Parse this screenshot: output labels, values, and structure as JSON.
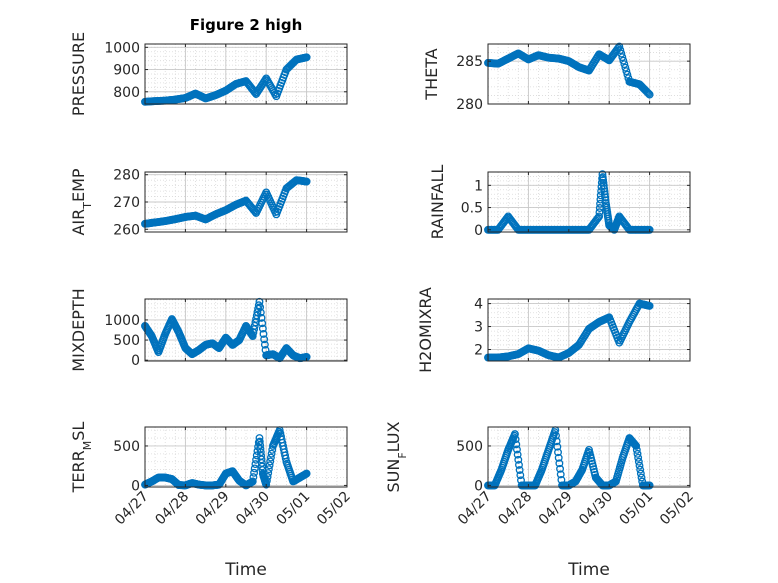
{
  "figure": {
    "background": "#ffffff",
    "marker_color": "#0072bd"
  },
  "chart_data": [
    {
      "type": "scatter",
      "title": "Figure 2 high",
      "xlabel": "",
      "ylabel": "PRESSURE",
      "xlim": [
        "04/27",
        "05/02"
      ],
      "ylim": [
        745,
        1015
      ],
      "yticks": [
        800,
        900,
        1000
      ],
      "grid": true,
      "minor_grid": true,
      "marker": "open-circle",
      "x": [
        "04/27 00:00",
        "04/27 06:00",
        "04/27 12:00",
        "04/27 18:00",
        "04/28 00:00",
        "04/28 06:00",
        "04/28 12:00",
        "04/28 18:00",
        "04/29 00:00",
        "04/29 06:00",
        "04/29 12:00",
        "04/29 18:00",
        "04/30 00:00",
        "04/30 06:00",
        "04/30 12:00",
        "04/30 18:00",
        "05/01 00:00"
      ],
      "series": [
        {
          "values": [
            755,
            758,
            760,
            765,
            772,
            792,
            770,
            785,
            805,
            835,
            848,
            790,
            860,
            780,
            900,
            945,
            955
          ]
        }
      ]
    },
    {
      "type": "scatter",
      "title": "",
      "xlabel": "",
      "ylabel": "THETA",
      "xlim": [
        "04/27",
        "05/02"
      ],
      "ylim": [
        280,
        287
      ],
      "yticks": [
        280,
        285
      ],
      "grid": true,
      "minor_grid": true,
      "marker": "open-circle",
      "x": [
        "04/27 00:00",
        "04/27 06:00",
        "04/27 12:00",
        "04/27 18:00",
        "04/28 00:00",
        "04/28 06:00",
        "04/28 12:00",
        "04/28 18:00",
        "04/29 00:00",
        "04/29 06:00",
        "04/29 12:00",
        "04/29 18:00",
        "04/30 00:00",
        "04/30 06:00",
        "04/30 12:00",
        "04/30 18:00",
        "05/01 00:00"
      ],
      "series": [
        {
          "values": [
            284.8,
            284.7,
            285.3,
            285.9,
            285.2,
            285.7,
            285.4,
            285.3,
            285.0,
            284.3,
            283.9,
            285.8,
            285.1,
            286.7,
            282.6,
            282.3,
            281.1
          ]
        }
      ]
    },
    {
      "type": "scatter",
      "title": "",
      "xlabel": "",
      "ylabel": "AIR_TEMP",
      "xlim": [
        "04/27",
        "05/02"
      ],
      "ylim": [
        259,
        281
      ],
      "yticks": [
        260,
        270,
        280
      ],
      "grid": true,
      "minor_grid": true,
      "marker": "open-circle",
      "x": [
        "04/27 00:00",
        "04/27 06:00",
        "04/27 12:00",
        "04/27 18:00",
        "04/28 00:00",
        "04/28 06:00",
        "04/28 12:00",
        "04/28 18:00",
        "04/29 00:00",
        "04/29 06:00",
        "04/29 12:00",
        "04/29 18:00",
        "04/30 00:00",
        "04/30 06:00",
        "04/30 12:00",
        "04/30 18:00",
        "05/01 00:00"
      ],
      "series": [
        {
          "values": [
            262,
            262.5,
            263,
            263.7,
            264.5,
            265,
            263.6,
            265.5,
            267,
            269,
            270.5,
            266,
            273.5,
            265.5,
            275,
            278,
            277.5
          ]
        }
      ]
    },
    {
      "type": "scatter",
      "title": "",
      "xlabel": "",
      "ylabel": "RAINFALL",
      "xlim": [
        "04/27",
        "05/02"
      ],
      "ylim": [
        -0.05,
        1.3
      ],
      "yticks": [
        0,
        0.5,
        1
      ],
      "grid": true,
      "minor_grid": true,
      "marker": "open-circle",
      "x": [
        "04/27 00:00",
        "04/27 06:00",
        "04/27 12:00",
        "04/27 18:00",
        "04/28 00:00",
        "04/28 06:00",
        "04/28 12:00",
        "04/28 18:00",
        "04/29 00:00",
        "04/29 06:00",
        "04/29 12:00",
        "04/29 18:00",
        "04/29 20:00",
        "04/29 22:00",
        "04/30 00:00",
        "04/30 03:00",
        "04/30 06:00",
        "04/30 12:00",
        "04/30 18:00",
        "05/01 00:00"
      ],
      "series": [
        {
          "values": [
            0,
            0,
            0.3,
            0,
            0,
            0,
            0,
            0,
            0,
            0,
            0,
            0.3,
            1.25,
            0.6,
            0.1,
            0,
            0.3,
            0,
            0,
            0
          ]
        }
      ]
    },
    {
      "type": "scatter",
      "title": "",
      "xlabel": "",
      "ylabel": "MIXDEPTH",
      "xlim": [
        "04/27",
        "05/02"
      ],
      "ylim": [
        -20,
        1520
      ],
      "yticks": [
        0,
        500,
        1000
      ],
      "grid": true,
      "minor_grid": true,
      "marker": "open-circle",
      "x": [
        "04/27 00:00",
        "04/27 04:00",
        "04/27 08:00",
        "04/27 12:00",
        "04/27 16:00",
        "04/27 20:00",
        "04/28 00:00",
        "04/28 04:00",
        "04/28 08:00",
        "04/28 12:00",
        "04/28 16:00",
        "04/28 20:00",
        "04/29 00:00",
        "04/29 04:00",
        "04/29 08:00",
        "04/29 12:00",
        "04/29 16:00",
        "04/29 20:00",
        "04/30 00:00",
        "04/30 04:00",
        "04/30 08:00",
        "04/30 12:00",
        "04/30 16:00",
        "04/30 20:00",
        "05/01 00:00"
      ],
      "series": [
        {
          "values": [
            850,
            600,
            200,
            650,
            1020,
            700,
            300,
            150,
            250,
            380,
            420,
            300,
            560,
            380,
            500,
            850,
            600,
            1450,
            120,
            150,
            50,
            300,
            120,
            50,
            80
          ]
        }
      ]
    },
    {
      "type": "scatter",
      "title": "",
      "xlabel": "",
      "ylabel": "H2OMIXRA",
      "xlim": [
        "04/27",
        "05/02"
      ],
      "ylim": [
        1.5,
        4.2
      ],
      "yticks": [
        2,
        3,
        4
      ],
      "grid": true,
      "minor_grid": true,
      "marker": "open-circle",
      "x": [
        "04/27 00:00",
        "04/27 06:00",
        "04/27 12:00",
        "04/27 18:00",
        "04/28 00:00",
        "04/28 06:00",
        "04/28 12:00",
        "04/28 18:00",
        "04/29 00:00",
        "04/29 06:00",
        "04/29 12:00",
        "04/29 18:00",
        "04/30 00:00",
        "04/30 06:00",
        "04/30 12:00",
        "04/30 18:00",
        "05/01 00:00"
      ],
      "series": [
        {
          "values": [
            1.65,
            1.65,
            1.7,
            1.8,
            2.05,
            1.95,
            1.75,
            1.65,
            1.85,
            2.2,
            2.9,
            3.2,
            3.4,
            2.3,
            3.2,
            4.0,
            3.9
          ]
        }
      ]
    },
    {
      "type": "scatter",
      "title": "",
      "xlabel": "Time",
      "ylabel": "TERR_MSL",
      "xlim": [
        "04/27",
        "05/02"
      ],
      "ylim": [
        -20,
        740
      ],
      "yticks": [
        0,
        500
      ],
      "xticks": [
        "04/27",
        "04/28",
        "04/29",
        "04/30",
        "05/01",
        "05/02"
      ],
      "grid": true,
      "minor_grid": true,
      "marker": "open-circle",
      "x": [
        "04/27 00:00",
        "04/27 04:00",
        "04/27 08:00",
        "04/27 12:00",
        "04/27 16:00",
        "04/27 20:00",
        "04/28 00:00",
        "04/28 04:00",
        "04/28 08:00",
        "04/28 12:00",
        "04/28 16:00",
        "04/28 20:00",
        "04/29 00:00",
        "04/29 04:00",
        "04/29 08:00",
        "04/29 12:00",
        "04/29 16:00",
        "04/29 20:00",
        "04/29 22:00",
        "04/30 00:00",
        "04/30 04:00",
        "04/30 08:00",
        "04/30 12:00",
        "04/30 16:00",
        "04/30 20:00",
        "05/01 00:00"
      ],
      "series": [
        {
          "values": [
            10,
            50,
            100,
            100,
            80,
            5,
            0,
            30,
            10,
            0,
            0,
            10,
            150,
            180,
            60,
            0,
            50,
            600,
            150,
            10,
            500,
            700,
            300,
            50,
            100,
            150
          ]
        }
      ]
    },
    {
      "type": "scatter",
      "title": "",
      "xlabel": "Time",
      "ylabel": "SUN_FLUX",
      "xlim": [
        "04/27",
        "05/02"
      ],
      "ylim": [
        -20,
        740
      ],
      "yticks": [
        0,
        500
      ],
      "xticks": [
        "04/27",
        "04/28",
        "04/29",
        "04/30",
        "05/01",
        "05/02"
      ],
      "grid": true,
      "minor_grid": true,
      "marker": "open-circle",
      "x": [
        "04/27 00:00",
        "04/27 04:00",
        "04/27 08:00",
        "04/27 12:00",
        "04/27 16:00",
        "04/27 20:00",
        "04/28 00:00",
        "04/28 04:00",
        "04/28 08:00",
        "04/28 12:00",
        "04/28 16:00",
        "04/28 20:00",
        "04/29 00:00",
        "04/29 04:00",
        "04/29 08:00",
        "04/29 12:00",
        "04/29 16:00",
        "04/29 20:00",
        "04/30 00:00",
        "04/30 04:00",
        "04/30 08:00",
        "04/30 12:00",
        "04/30 16:00",
        "04/30 20:00",
        "05/01 00:00"
      ],
      "series": [
        {
          "values": [
            0,
            0,
            200,
            450,
            650,
            0,
            0,
            0,
            200,
            450,
            700,
            0,
            0,
            50,
            200,
            450,
            100,
            0,
            0,
            50,
            350,
            600,
            500,
            0,
            0
          ]
        }
      ]
    }
  ],
  "labels": {
    "title": "Figure 2 high",
    "ylabels": [
      "PRESSURE",
      "THETA",
      "AIR",
      "T",
      "EMP",
      "RAINFALL",
      "MIXDEPTH",
      "H2OMIXRA",
      "TERR",
      "M",
      "SL",
      "SUN",
      "F",
      "LUX"
    ],
    "xlabel": "Time",
    "xticks": [
      "04/27",
      "04/28",
      "04/29",
      "04/30",
      "05/01",
      "05/02"
    ]
  }
}
